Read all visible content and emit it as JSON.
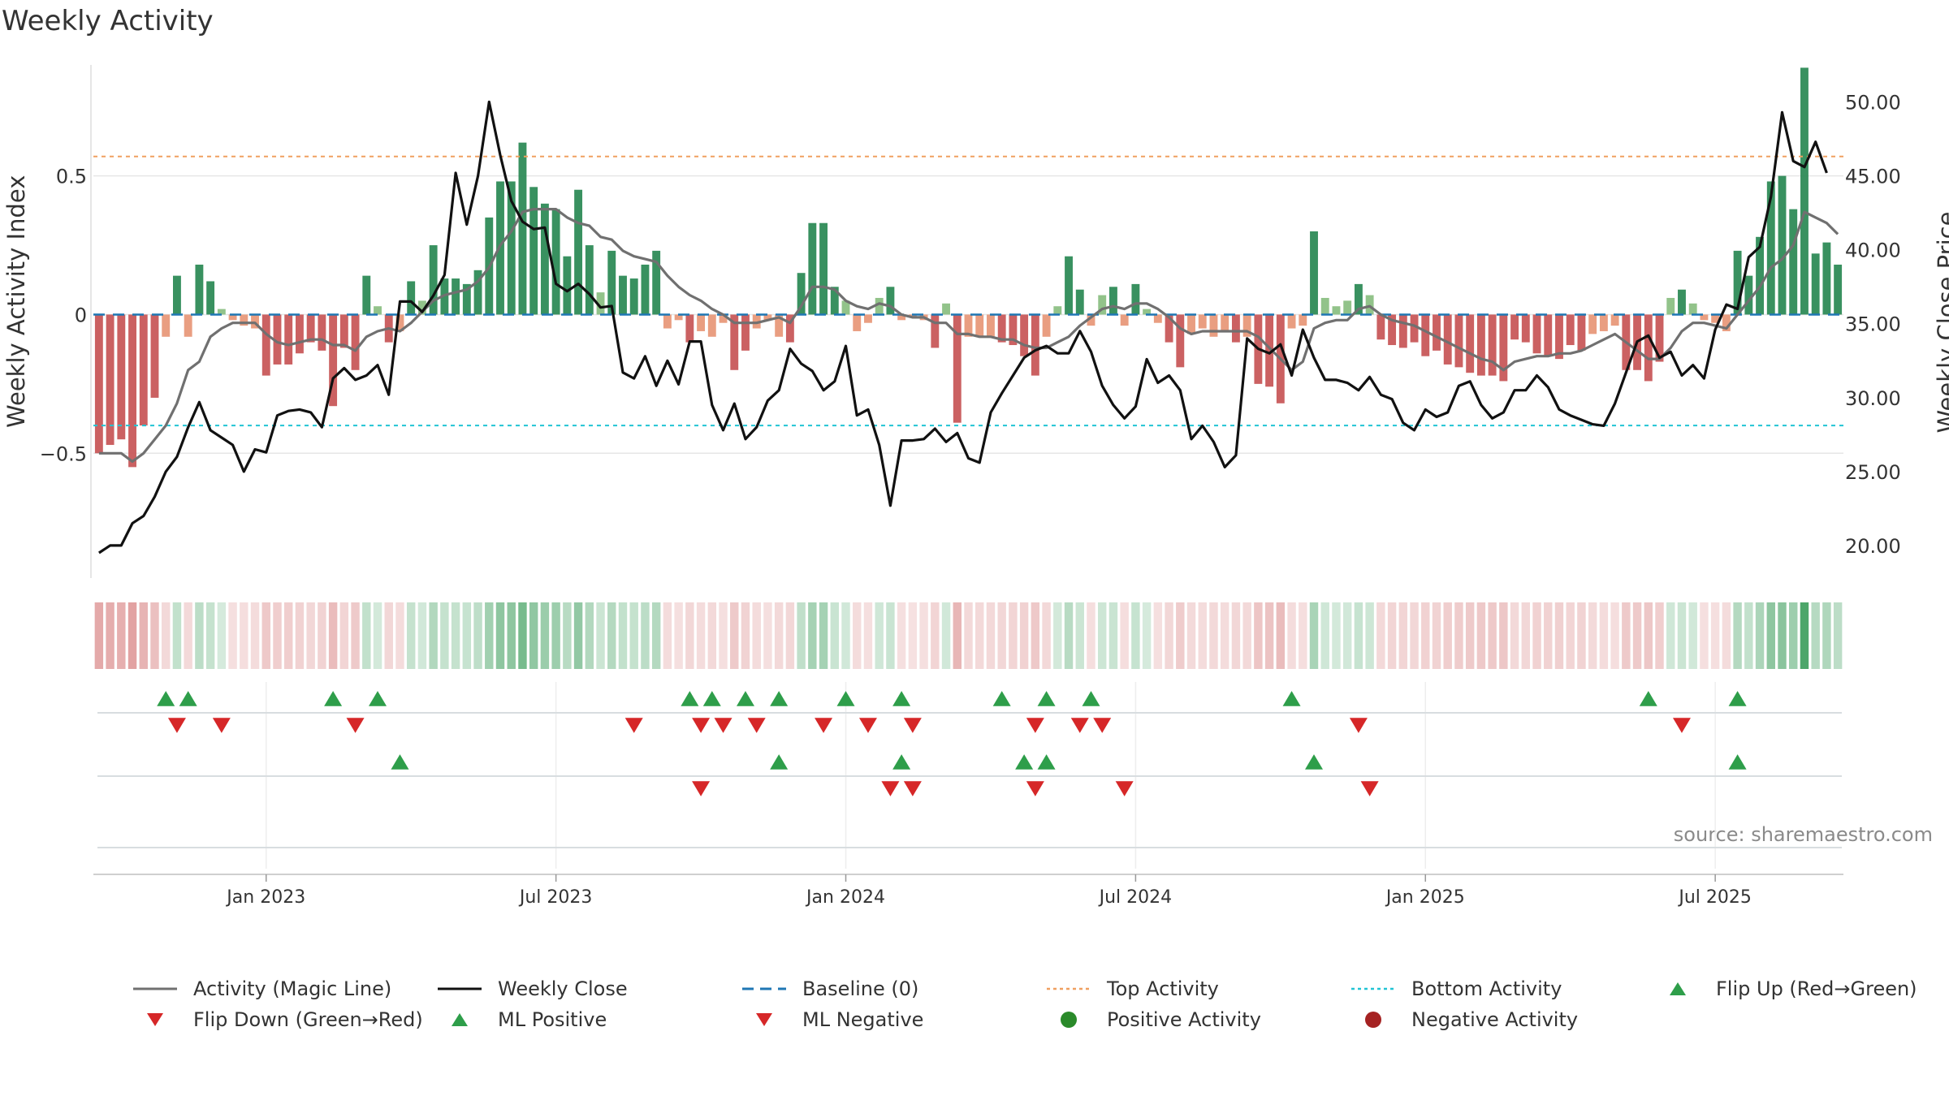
{
  "chart_data": {
    "type": "bar",
    "title": "Weekly Activity",
    "ylabel": "Weekly Activity Index",
    "y2label": "Weekly Close Price",
    "ylim": [
      -0.95,
      0.9
    ],
    "y2lim": [
      17.8,
      52.5
    ],
    "yticks": [
      {
        "v": 0.5,
        "label": "0.5"
      },
      {
        "v": 0,
        "label": "0"
      },
      {
        "v": -0.5,
        "label": "−0.5"
      }
    ],
    "y2ticks": [
      "50.00",
      "45.00",
      "40.00",
      "35.00",
      "30.00",
      "25.00",
      "20.00"
    ],
    "top_activity": 0.57,
    "bottom_activity": -0.4,
    "xticks": [
      {
        "label": "Jan 2023",
        "week": 15
      },
      {
        "label": "Jul 2023",
        "week": 41
      },
      {
        "label": "Jan 2024",
        "week": 67
      },
      {
        "label": "Jul 2024",
        "week": 93
      },
      {
        "label": "Jan 2025",
        "week": 119
      },
      {
        "label": "Jul 2025",
        "week": 145
      }
    ],
    "activity": [
      -0.5,
      -0.47,
      -0.45,
      -0.55,
      -0.4,
      -0.3,
      -0.08,
      0.14,
      -0.08,
      0.18,
      0.12,
      0.02,
      -0.02,
      -0.04,
      -0.05,
      -0.22,
      -0.18,
      -0.18,
      -0.14,
      -0.1,
      -0.13,
      -0.33,
      -0.12,
      -0.2,
      0.14,
      0.03,
      -0.1,
      -0.06,
      0.12,
      0.05,
      0.25,
      0.13,
      0.13,
      0.11,
      0.16,
      0.35,
      0.48,
      0.48,
      0.62,
      0.46,
      0.4,
      0.38,
      0.21,
      0.45,
      0.25,
      0.08,
      0.23,
      0.14,
      0.13,
      0.18,
      0.23,
      -0.05,
      -0.02,
      -0.1,
      -0.06,
      -0.08,
      -0.03,
      -0.2,
      -0.13,
      -0.05,
      -0.02,
      -0.08,
      -0.1,
      0.15,
      0.33,
      0.33,
      0.1,
      0.05,
      -0.06,
      -0.03,
      0.06,
      0.1,
      -0.02,
      -0.01,
      -0.02,
      -0.12,
      0.04,
      -0.39,
      -0.08,
      -0.08,
      -0.08,
      -0.1,
      -0.11,
      -0.15,
      -0.22,
      -0.08,
      0.03,
      0.21,
      0.09,
      -0.04,
      0.07,
      0.1,
      -0.04,
      0.11,
      0.02,
      -0.03,
      -0.1,
      -0.19,
      -0.07,
      -0.05,
      -0.08,
      -0.06,
      -0.1,
      -0.08,
      -0.25,
      -0.26,
      -0.32,
      -0.05,
      -0.04,
      0.3,
      0.06,
      0.03,
      0.05,
      0.11,
      0.07,
      -0.09,
      -0.11,
      -0.12,
      -0.1,
      -0.15,
      -0.13,
      -0.18,
      -0.19,
      -0.21,
      -0.22,
      -0.22,
      -0.24,
      -0.09,
      -0.1,
      -0.14,
      -0.15,
      -0.16,
      -0.11,
      -0.13,
      -0.07,
      -0.06,
      -0.04,
      -0.2,
      -0.2,
      -0.24,
      -0.17,
      0.06,
      0.09,
      0.04,
      -0.02,
      -0.03,
      -0.06,
      0.23,
      0.14,
      0.28,
      0.48,
      0.5,
      0.38,
      0.89,
      0.22,
      0.26,
      0.18
    ],
    "magic_line": [
      -0.5,
      -0.5,
      -0.5,
      -0.53,
      -0.5,
      -0.45,
      -0.4,
      -0.32,
      -0.2,
      -0.17,
      -0.08,
      -0.05,
      -0.03,
      -0.03,
      -0.03,
      -0.07,
      -0.1,
      -0.11,
      -0.1,
      -0.09,
      -0.09,
      -0.11,
      -0.11,
      -0.13,
      -0.08,
      -0.06,
      -0.05,
      -0.06,
      -0.03,
      0.01,
      0.05,
      0.07,
      0.08,
      0.09,
      0.12,
      0.17,
      0.25,
      0.3,
      0.37,
      0.38,
      0.38,
      0.38,
      0.35,
      0.33,
      0.32,
      0.28,
      0.27,
      0.23,
      0.21,
      0.2,
      0.19,
      0.14,
      0.1,
      0.07,
      0.05,
      0.02,
      0.0,
      -0.03,
      -0.03,
      -0.03,
      -0.02,
      -0.01,
      -0.03,
      0.03,
      0.1,
      0.1,
      0.09,
      0.05,
      0.03,
      0.02,
      0.04,
      0.03,
      0.0,
      -0.01,
      -0.01,
      -0.03,
      -0.03,
      -0.07,
      -0.07,
      -0.08,
      -0.08,
      -0.09,
      -0.09,
      -0.11,
      -0.12,
      -0.12,
      -0.1,
      -0.08,
      -0.04,
      -0.01,
      0.02,
      0.03,
      0.02,
      0.04,
      0.04,
      0.02,
      -0.01,
      -0.05,
      -0.07,
      -0.06,
      -0.06,
      -0.06,
      -0.06,
      -0.06,
      -0.08,
      -0.12,
      -0.16,
      -0.2,
      -0.17,
      -0.05,
      -0.03,
      -0.02,
      -0.02,
      0.02,
      0.03,
      -0.0,
      -0.02,
      -0.03,
      -0.04,
      -0.06,
      -0.08,
      -0.1,
      -0.12,
      -0.14,
      -0.16,
      -0.17,
      -0.2,
      -0.17,
      -0.16,
      -0.15,
      -0.15,
      -0.14,
      -0.14,
      -0.13,
      -0.11,
      -0.09,
      -0.07,
      -0.1,
      -0.13,
      -0.16,
      -0.16,
      -0.12,
      -0.06,
      -0.03,
      -0.03,
      -0.04,
      -0.05,
      0.0,
      0.05,
      0.1,
      0.17,
      0.2,
      0.25,
      0.37,
      0.35,
      0.33,
      0.29
    ],
    "weekly_close": [
      19.5,
      20.0,
      20.0,
      21.5,
      22.0,
      23.3,
      25.0,
      26.0,
      28.0,
      29.7,
      27.8,
      27.3,
      26.8,
      25.0,
      26.5,
      26.3,
      28.8,
      29.1,
      29.2,
      29.0,
      28.0,
      31.3,
      32.0,
      31.2,
      31.5,
      32.2,
      30.2,
      36.5,
      36.5,
      35.8,
      36.9,
      38.3,
      45.2,
      41.7,
      45.0,
      50.0,
      46.4,
      43.3,
      41.9,
      41.4,
      41.5,
      37.7,
      37.2,
      37.7,
      37.0,
      36.1,
      36.2,
      31.7,
      31.3,
      32.8,
      30.8,
      32.5,
      30.9,
      33.8,
      33.8,
      29.5,
      27.8,
      29.6,
      27.2,
      28.0,
      29.8,
      30.5,
      33.3,
      32.3,
      31.8,
      30.5,
      31.1,
      33.5,
      28.8,
      29.2,
      26.8,
      22.7,
      27.1,
      27.1,
      27.2,
      27.9,
      27.0,
      27.6,
      25.9,
      25.6,
      29.0,
      30.3,
      31.5,
      32.7,
      33.2,
      33.5,
      33.0,
      33.0,
      34.5,
      33.1,
      30.8,
      29.5,
      28.6,
      29.4,
      32.6,
      31.0,
      31.5,
      30.5,
      27.2,
      28.1,
      27.0,
      25.3,
      26.1,
      34.0,
      33.3,
      33.0,
      33.6,
      31.5,
      34.6,
      32.7,
      31.2,
      31.2,
      31.0,
      30.5,
      31.4,
      30.2,
      29.9,
      28.3,
      27.8,
      29.2,
      28.7,
      29.0,
      30.8,
      31.1,
      29.5,
      28.6,
      29.0,
      30.5,
      30.5,
      31.5,
      30.7,
      29.2,
      28.8,
      28.5,
      28.2,
      28.1,
      29.6,
      31.7,
      33.8,
      34.2,
      32.7,
      33.1,
      31.5,
      32.2,
      31.3,
      34.6,
      36.3,
      36.0,
      39.5,
      40.2,
      43.6,
      49.3,
      46.0,
      45.6,
      47.3,
      45.2
    ],
    "strip_rows": {
      "flip_up": [
        6,
        8,
        21,
        25,
        53,
        55,
        58,
        61,
        67,
        72,
        81,
        85,
        89,
        107,
        139,
        147
      ],
      "flip_down": [
        7,
        11,
        23,
        48,
        54,
        56,
        59,
        65,
        69,
        73,
        84,
        88,
        90,
        113,
        142
      ],
      "ml_positive": [
        27,
        61,
        72,
        83,
        85,
        109,
        147
      ],
      "ml_negative": [
        54,
        71,
        73,
        84,
        92,
        114
      ]
    },
    "source": "source: sharemaestro.com",
    "legend": [
      {
        "label": "Activity (Magic Line)",
        "marker": "line-gray"
      },
      {
        "label": "Weekly Close",
        "marker": "line-black"
      },
      {
        "label": "Baseline (0)",
        "marker": "dash-blue"
      },
      {
        "label": "Top Activity",
        "marker": "dot-orange"
      },
      {
        "label": "Bottom Activity",
        "marker": "dot-cyan"
      },
      {
        "label": "Flip Up (Red→Green)",
        "marker": "triangle-up-green"
      },
      {
        "label": "Flip Down (Green→Red)",
        "marker": "triangle-down-red"
      },
      {
        "label": "ML Positive",
        "marker": "triangle-up-green"
      },
      {
        "label": "ML Negative",
        "marker": "triangle-down-red"
      },
      {
        "label": "Positive Activity",
        "marker": "circle-green"
      },
      {
        "label": "Negative Activity",
        "marker": "circle-red"
      }
    ],
    "colors": {
      "pos_strong": "#2e8b57",
      "pos_weak": "#8cc084",
      "neg_strong": "#c8585a",
      "neg_weak": "#e8997a",
      "magic_line": "#707070",
      "close": "#111111",
      "baseline": "#1f77b4",
      "top": "#f0a060",
      "bottom": "#22c4d4",
      "marker_green": "#2e9e4a",
      "marker_red": "#d62728"
    }
  }
}
